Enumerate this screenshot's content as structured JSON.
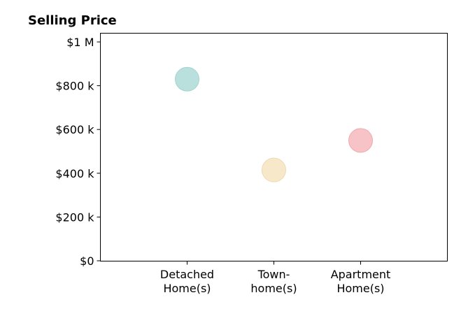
{
  "chart_data": {
    "type": "scatter",
    "title": "Selling Price",
    "xlabel": "",
    "ylabel": "",
    "categories": [
      [
        "Detached",
        "Home(s)"
      ],
      [
        "Town-",
        "home(s)"
      ],
      [
        "Apartment",
        "Home(s)"
      ]
    ],
    "values": [
      830000,
      415000,
      550000
    ],
    "colors": [
      "#b3ddd9",
      "#f7e6c4",
      "#f7bcc1"
    ],
    "edge_colors": [
      "#a3d3cf",
      "#efd9ae",
      "#eeaab0"
    ],
    "ylim": [
      0,
      1000000
    ],
    "xlim": [
      0,
      4
    ],
    "x_positions": [
      1,
      2,
      3
    ],
    "yticks": [
      {
        "value": 0,
        "label": "$0"
      },
      {
        "value": 200000,
        "label": "$200 k"
      },
      {
        "value": 400000,
        "label": "$400 k"
      },
      {
        "value": 600000,
        "label": "$600 k"
      },
      {
        "value": 800000,
        "label": "$800 k"
      },
      {
        "value": 1000000,
        "label": "$1 M"
      }
    ],
    "grid": false,
    "legend": "none"
  }
}
